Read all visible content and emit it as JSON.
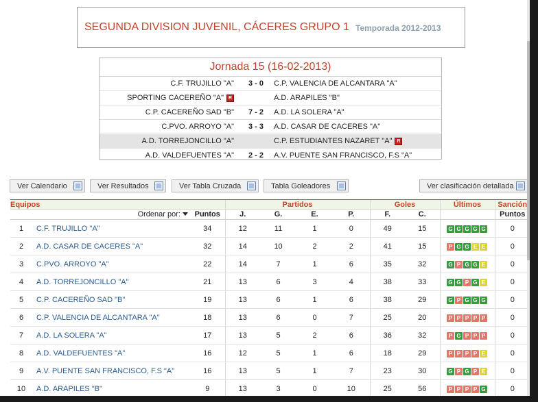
{
  "header": {
    "title": "SEGUNDA DIVISION JUVENIL, CÁCERES GRUPO 1",
    "season": "Temporada 2012-2013"
  },
  "jornada": {
    "title": "Jornada 15 (16-02-2013)",
    "matches": [
      {
        "home": "C.F. TRUJILLO \"A\"",
        "score": "3 - 0",
        "away": "C.P. VALENCIA DE ALCANTARA \"A\"",
        "home_icon": "",
        "away_icon": "",
        "highlight": false
      },
      {
        "home": "SPORTING CACEREÑO \"A\"",
        "score": "",
        "away": "A.D. ARAPILES \"B\"",
        "home_icon": "R",
        "away_icon": "",
        "highlight": false
      },
      {
        "home": "C.P. CACEREÑO SAD \"B\"",
        "score": "7 - 2",
        "away": "A.D. LA SOLERA \"A\"",
        "home_icon": "",
        "away_icon": "",
        "highlight": false
      },
      {
        "home": "C.PVO. ARROYO \"A\"",
        "score": "3 - 3",
        "away": "A.D. CASAR DE CACERES \"A\"",
        "home_icon": "",
        "away_icon": "",
        "highlight": false
      },
      {
        "home": "A.D. TORREJONCILLO \"A\"",
        "score": "",
        "away": "C.P. ESTUDIANTES NAZARET \"A\"",
        "home_icon": "",
        "away_icon": "R",
        "highlight": true
      },
      {
        "home": "A.D. VALDEFUENTES \"A\"",
        "score": "2 - 2",
        "away": "A.V. PUENTE SAN FRANCISCO, F.S \"A\"",
        "home_icon": "",
        "away_icon": "",
        "highlight": false
      }
    ]
  },
  "buttons": {
    "calendar": "Ver Calendario",
    "results": "Ver Resultados",
    "cross_table": "Ver Tabla Cruzada",
    "scorers": "Tabla Goleadores",
    "detailed": "Ver clasificación detallada"
  },
  "standings": {
    "groups": {
      "equipos": "Equipos",
      "partidos": "Partidos",
      "goles": "Goles",
      "ultimos": "Últimos",
      "sancion": "Sanción"
    },
    "sort_label": "Ordenar por:",
    "columns": {
      "puntos": "Puntos",
      "j": "J.",
      "g": "G.",
      "e": "E.",
      "p": "P.",
      "f": "F.",
      "c": "C.",
      "sancion_puntos": "Puntos"
    },
    "rows": [
      {
        "pos": "1",
        "team": "C.F. TRUJILLO \"A\"",
        "pts": "34",
        "j": "12",
        "g": "11",
        "e": "1",
        "p": "0",
        "f": "49",
        "c": "15",
        "last": [
          "G",
          "G",
          "G",
          "G",
          "G"
        ],
        "san": "0"
      },
      {
        "pos": "2",
        "team": "A.D. CASAR DE CACERES \"A\"",
        "pts": "32",
        "j": "14",
        "g": "10",
        "e": "2",
        "p": "2",
        "f": "41",
        "c": "15",
        "last": [
          "P",
          "G",
          "G",
          "E",
          "E"
        ],
        "san": "0"
      },
      {
        "pos": "3",
        "team": "C.PVO. ARROYO \"A\"",
        "pts": "22",
        "j": "14",
        "g": "7",
        "e": "1",
        "p": "6",
        "f": "35",
        "c": "32",
        "last": [
          "G",
          "P",
          "G",
          "G",
          "E"
        ],
        "san": "0"
      },
      {
        "pos": "4",
        "team": "A.D. TORREJONCILLO \"A\"",
        "pts": "21",
        "j": "13",
        "g": "6",
        "e": "3",
        "p": "4",
        "f": "38",
        "c": "33",
        "last": [
          "G",
          "G",
          "P",
          "G",
          "E"
        ],
        "san": "0"
      },
      {
        "pos": "5",
        "team": "C.P. CACEREÑO SAD \"B\"",
        "pts": "19",
        "j": "13",
        "g": "6",
        "e": "1",
        "p": "6",
        "f": "38",
        "c": "29",
        "last": [
          "G",
          "P",
          "G",
          "G",
          "G"
        ],
        "san": "0"
      },
      {
        "pos": "6",
        "team": "C.P. VALENCIA DE ALCANTARA \"A\"",
        "pts": "18",
        "j": "13",
        "g": "6",
        "e": "0",
        "p": "7",
        "f": "25",
        "c": "20",
        "last": [
          "P",
          "P",
          "P",
          "P",
          "P"
        ],
        "san": "0"
      },
      {
        "pos": "7",
        "team": "A.D. LA SOLERA \"A\"",
        "pts": "17",
        "j": "13",
        "g": "5",
        "e": "2",
        "p": "6",
        "f": "36",
        "c": "32",
        "last": [
          "P",
          "G",
          "P",
          "P",
          "P"
        ],
        "san": "0"
      },
      {
        "pos": "8",
        "team": "A.D. VALDEFUENTES \"A\"",
        "pts": "16",
        "j": "12",
        "g": "5",
        "e": "1",
        "p": "6",
        "f": "18",
        "c": "29",
        "last": [
          "P",
          "P",
          "P",
          "P",
          "E"
        ],
        "san": "0"
      },
      {
        "pos": "9",
        "team": "A.V. PUENTE SAN FRANCISCO, F.S \"A\"",
        "pts": "16",
        "j": "13",
        "g": "5",
        "e": "1",
        "p": "7",
        "f": "23",
        "c": "30",
        "last": [
          "G",
          "P",
          "G",
          "P",
          "E"
        ],
        "san": "0"
      },
      {
        "pos": "10",
        "team": "A.D. ARAPILES \"B\"",
        "pts": "9",
        "j": "13",
        "g": "3",
        "e": "0",
        "p": "10",
        "f": "25",
        "c": "56",
        "last": [
          "P",
          "P",
          "P",
          "P",
          "G"
        ],
        "san": "0"
      }
    ]
  },
  "icons": {
    "red_card": "red-card-icon",
    "button": "window-icon"
  },
  "colors": {
    "accent": "#c0442a",
    "season": "#8aa0ad",
    "team_link": "#2a5a8c",
    "win": "#2da336",
    "loss": "#e8736b",
    "draw": "#dcd72a",
    "header_bg": "#eef7e6"
  }
}
